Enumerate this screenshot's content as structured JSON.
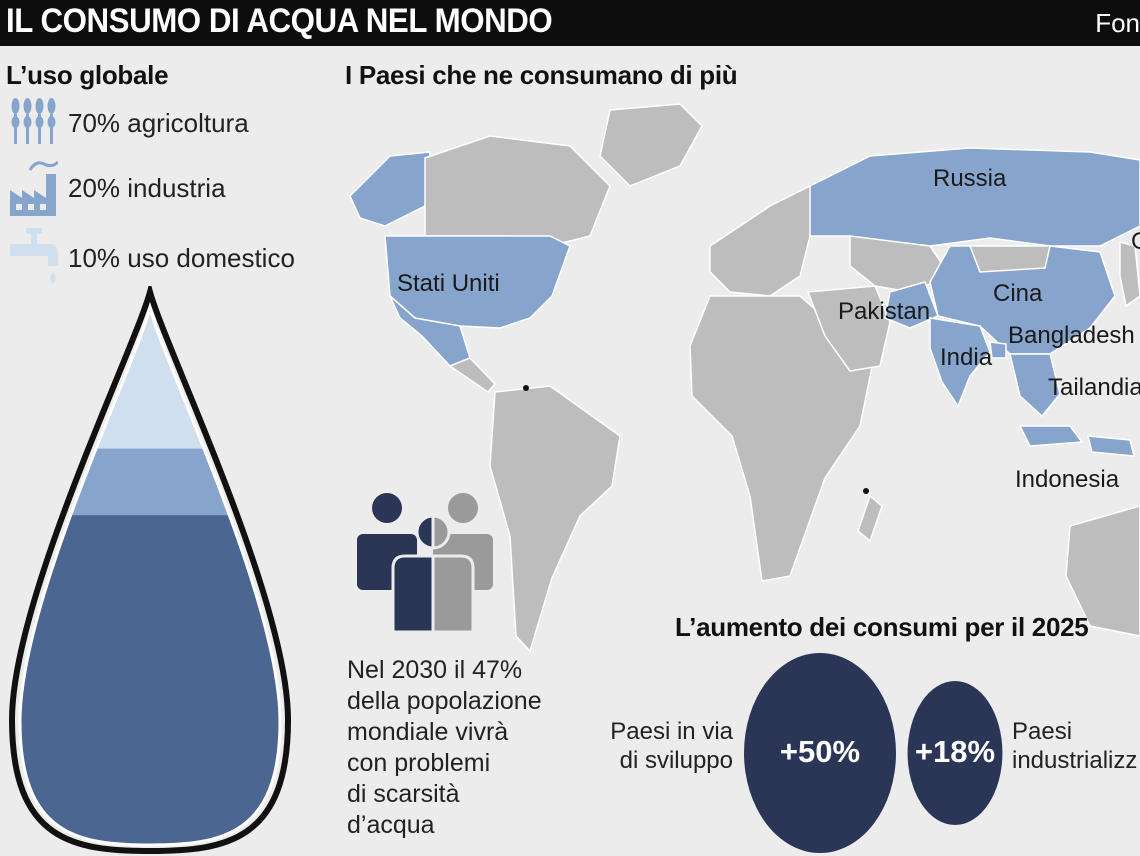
{
  "header": {
    "title": "IL CONSUMO DI ACQUA NEL MONDO",
    "source": "Fon"
  },
  "chart_data": [
    {
      "type": "pie",
      "title": "L’uso globale",
      "categories": [
        "agricoltura",
        "industria",
        "uso domestico"
      ],
      "values": [
        70,
        20,
        10
      ],
      "labels": [
        "70% agricoltura",
        "20% industria",
        "10% uso domestico"
      ],
      "colors": [
        "#4b6690",
        "#86a4cc",
        "#cfdfee"
      ],
      "icons": [
        "wheat-icon",
        "factory-icon",
        "faucet-icon"
      ]
    },
    {
      "type": "bar",
      "title": "L’aumento dei consumi per il 2025",
      "categories": [
        "Paesi in via di sviluppo",
        "Paesi industrializz"
      ],
      "label_lines": [
        [
          "Paesi in via",
          "di sviluppo"
        ],
        [
          "Paesi",
          "industrializz"
        ]
      ],
      "values": [
        50,
        18
      ],
      "value_labels": [
        "+50%",
        "+18%"
      ],
      "color": "#2b3556"
    }
  ],
  "map": {
    "title": "I Paesi che ne consumano di più",
    "countries": [
      "Russia",
      "Stati Uniti",
      "Pakistan",
      "Cina",
      "India",
      "Bangladesh",
      "Tailandia",
      "Indonesia"
    ],
    "edge_label": "G",
    "highlight_color": "#86a4cc",
    "base_color": "#bdbdbd"
  },
  "scarcity": {
    "lines": [
      "Nel 2030 il 47%",
      "della popolazione",
      "mondiale vivrà",
      "con problemi",
      "di scarsità",
      "d’acqua"
    ],
    "colors": [
      "#2b3556",
      "#9a9a9a"
    ]
  }
}
